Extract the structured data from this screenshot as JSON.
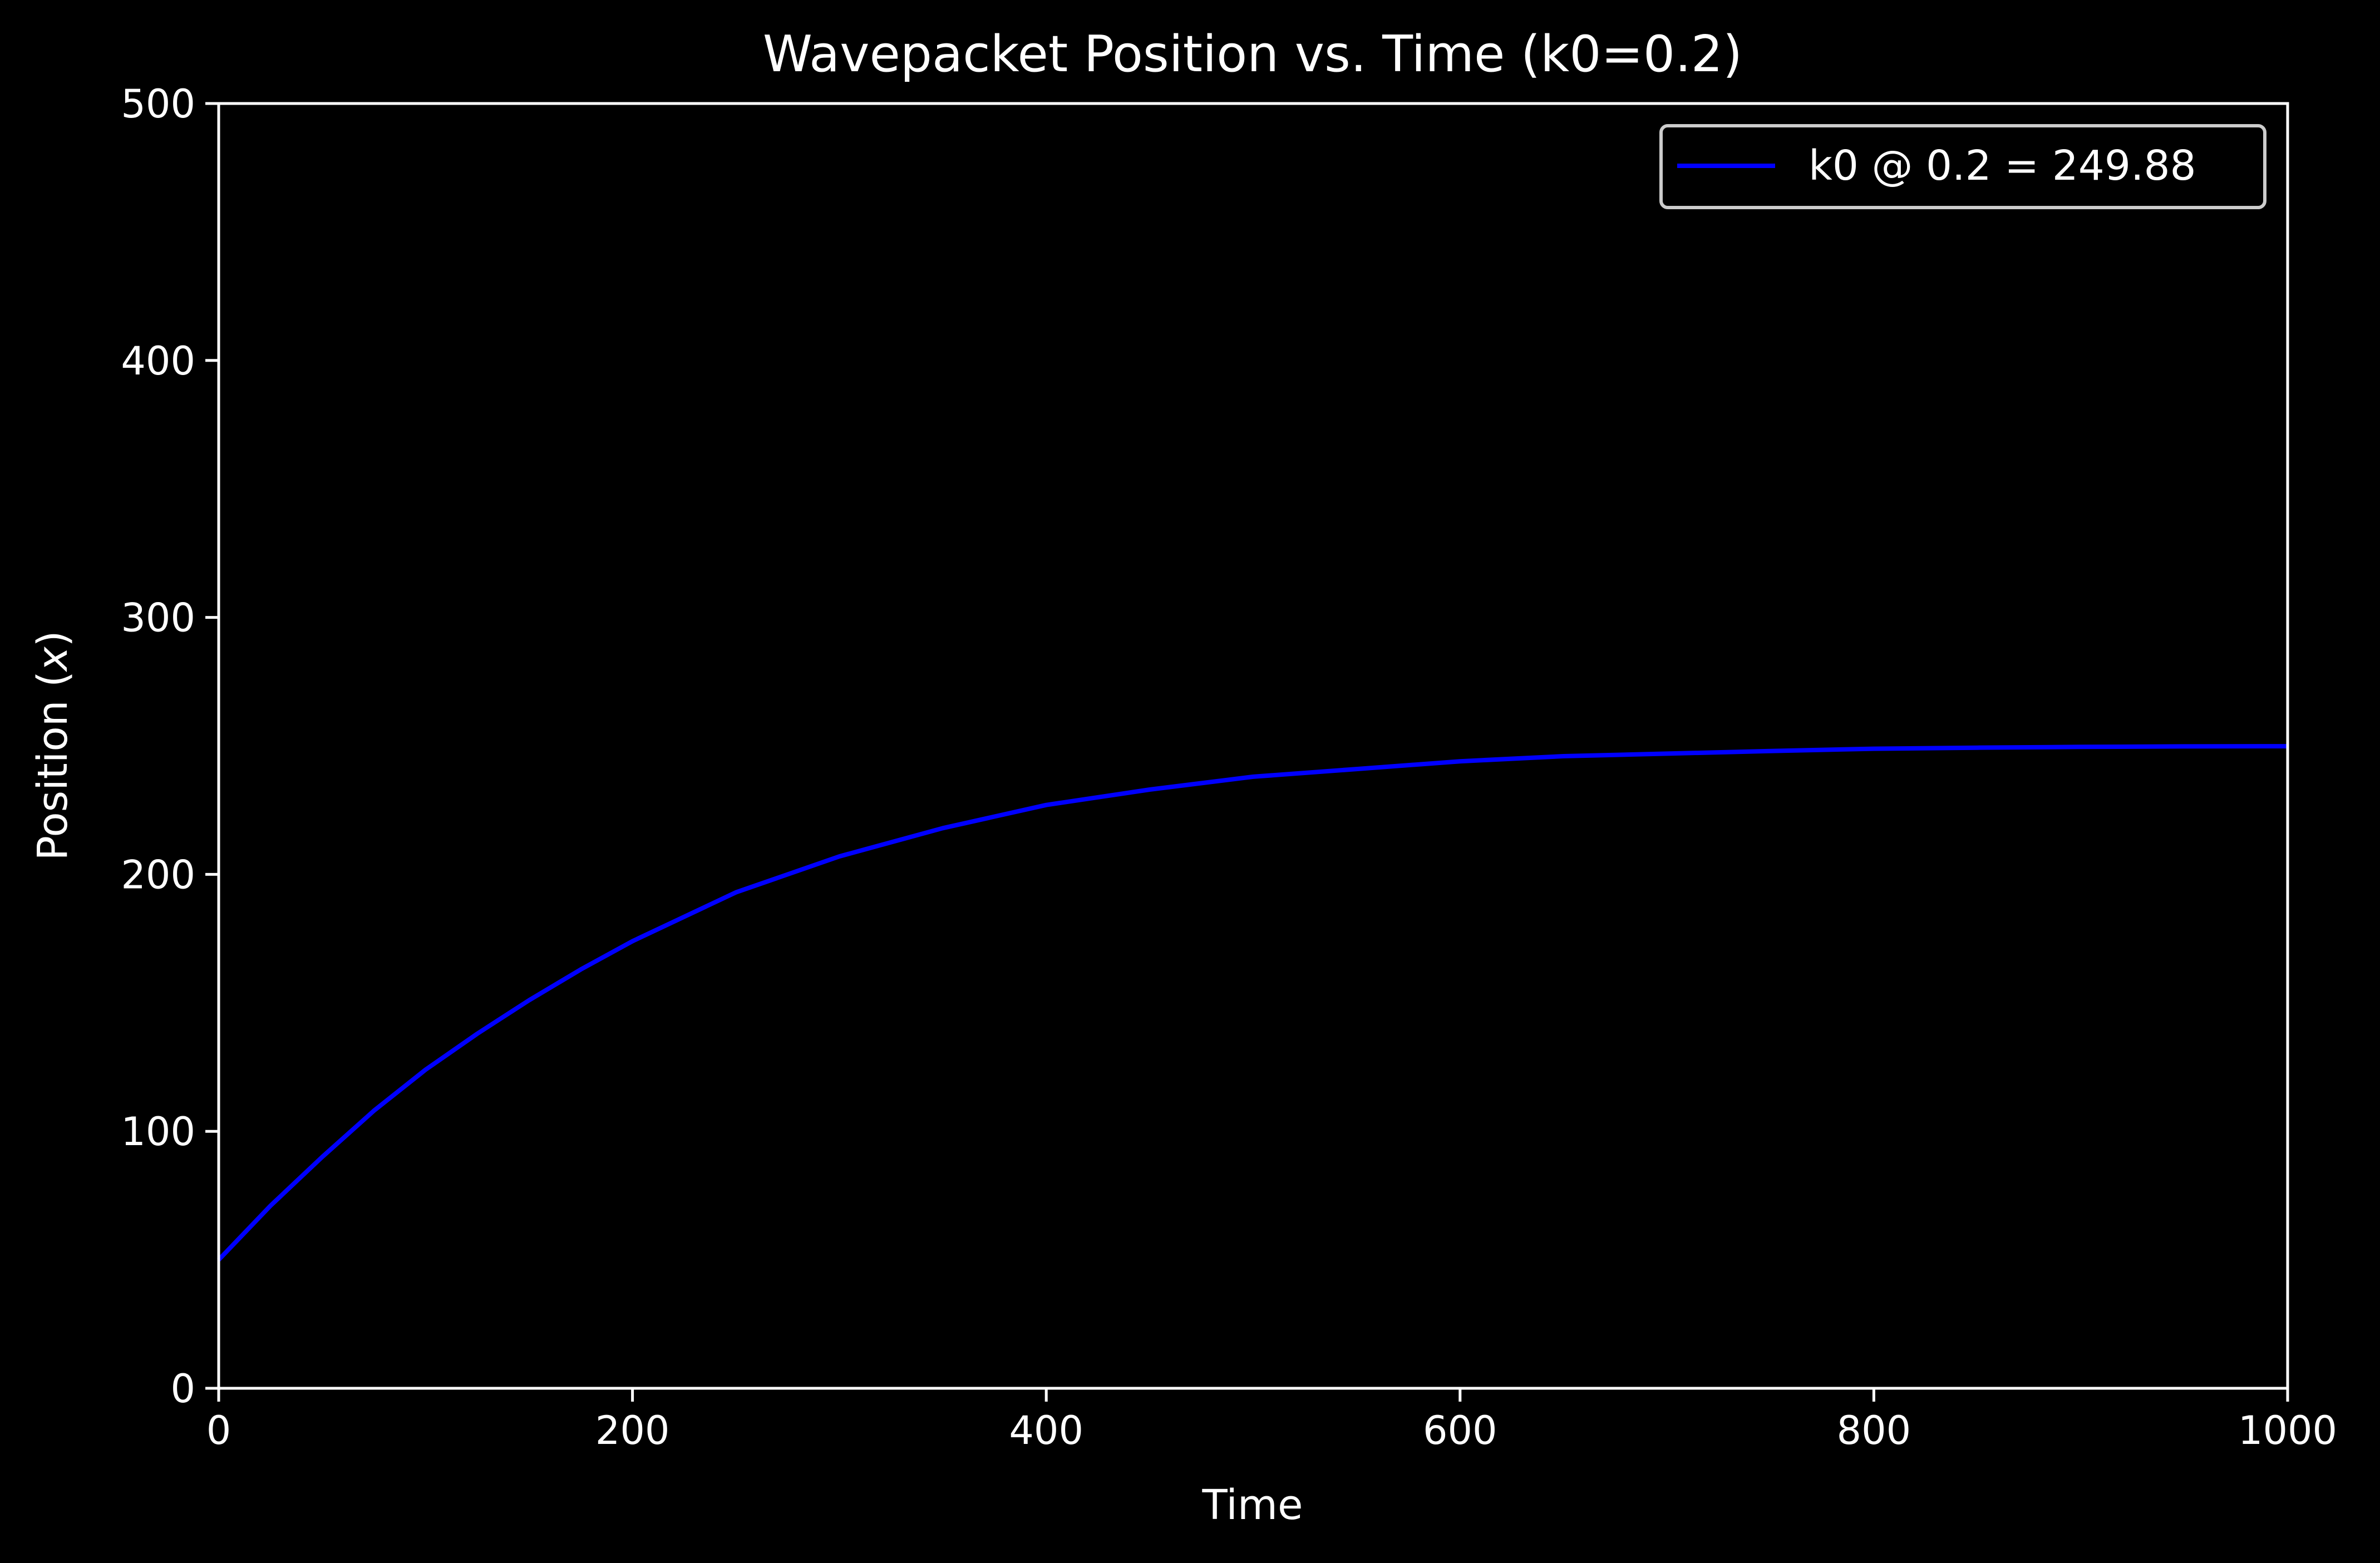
{
  "chart_data": {
    "type": "line",
    "title": "Wavepacket Position vs. Time (k0=0.2)",
    "xlabel": "Time",
    "ylabel": "Position (x)",
    "ylabel_parts": {
      "prefix": "Position (",
      "var": "x",
      "suffix": ")"
    },
    "xlim": [
      0,
      1000
    ],
    "ylim": [
      0,
      500
    ],
    "xticks": [
      0,
      200,
      400,
      600,
      800,
      1000
    ],
    "yticks": [
      0,
      100,
      200,
      300,
      400,
      500
    ],
    "grid": false,
    "legend_position": "top-right",
    "background_color": "#000000",
    "axes_color": "#ffffff",
    "series": [
      {
        "name": "k0 @ 0.2 = 249.88",
        "color": "#0000ff",
        "x": [
          0,
          25,
          50,
          75,
          100,
          125,
          150,
          175,
          200,
          250,
          300,
          350,
          400,
          450,
          500,
          550,
          600,
          650,
          700,
          750,
          800,
          850,
          900,
          950,
          1000
        ],
        "y": [
          50,
          71,
          90,
          108,
          124,
          138,
          151,
          163,
          174,
          193,
          207,
          218,
          227,
          233,
          238,
          241,
          244,
          246,
          247,
          248,
          248.9,
          249.3,
          249.6,
          249.8,
          249.88
        ]
      }
    ]
  }
}
